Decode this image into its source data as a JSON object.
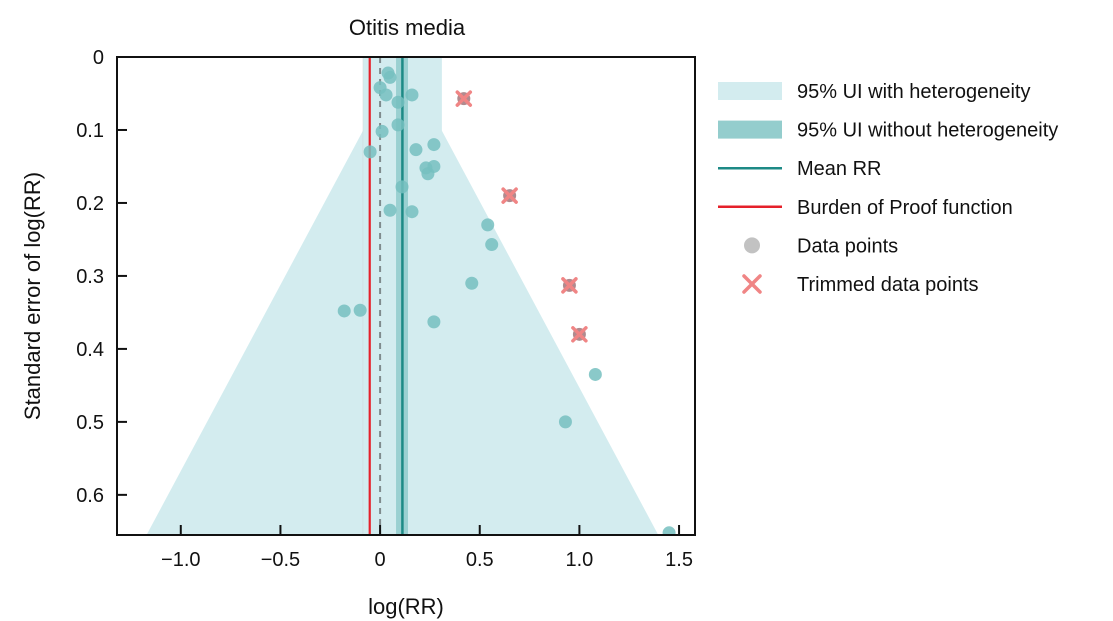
{
  "chart_data": {
    "type": "scatter",
    "title": "Otitis media",
    "xlabel": "log(RR)",
    "ylabel": "Standard error of log(RR)",
    "xlim": [
      -1.32,
      1.58
    ],
    "ylim": [
      0.655,
      0
    ],
    "y_inverted": true,
    "xticks": [
      -1.0,
      -0.5,
      0.0,
      0.5,
      1.0,
      1.5
    ],
    "xtick_labels": [
      "−1.0",
      "−0.5",
      "0",
      "0.5",
      "1.0",
      "1.5"
    ],
    "yticks": [
      0,
      0.1,
      0.2,
      0.3,
      0.4,
      0.5,
      0.6
    ],
    "ytick_labels": [
      "0",
      "0.1",
      "0.2",
      "0.3",
      "0.4",
      "0.5",
      "0.6"
    ],
    "grid": false,
    "legend_position": "right",
    "mean_rr": 0.112,
    "burden_of_proof": -0.052,
    "reference_line": 0,
    "ui_without_heterogeneity": [
      0.08,
      0.14
    ],
    "ui_with_heterogeneity": [
      -0.085,
      0.31
    ],
    "funnel_halfwidth_per_se": 1.96,
    "series": [
      {
        "name": "Data points",
        "points": [
          {
            "x": 0.04,
            "y": 0.022
          },
          {
            "x": 0.05,
            "y": 0.028
          },
          {
            "x": 0.0,
            "y": 0.042
          },
          {
            "x": 0.03,
            "y": 0.052
          },
          {
            "x": 0.16,
            "y": 0.052
          },
          {
            "x": 0.09,
            "y": 0.062
          },
          {
            "x": 0.09,
            "y": 0.093
          },
          {
            "x": 0.01,
            "y": 0.102
          },
          {
            "x": 0.27,
            "y": 0.12
          },
          {
            "x": 0.18,
            "y": 0.127
          },
          {
            "x": -0.05,
            "y": 0.13
          },
          {
            "x": 0.27,
            "y": 0.15
          },
          {
            "x": 0.23,
            "y": 0.152
          },
          {
            "x": 0.24,
            "y": 0.16
          },
          {
            "x": 0.11,
            "y": 0.178
          },
          {
            "x": 0.05,
            "y": 0.21
          },
          {
            "x": 0.16,
            "y": 0.212
          },
          {
            "x": 0.54,
            "y": 0.23
          },
          {
            "x": 0.56,
            "y": 0.257
          },
          {
            "x": 0.46,
            "y": 0.31
          },
          {
            "x": -0.18,
            "y": 0.348
          },
          {
            "x": -0.1,
            "y": 0.347
          },
          {
            "x": 0.27,
            "y": 0.363
          },
          {
            "x": 1.08,
            "y": 0.435
          },
          {
            "x": 0.93,
            "y": 0.5
          },
          {
            "x": 1.45,
            "y": 0.652
          }
        ]
      },
      {
        "name": "Trimmed data points",
        "points": [
          {
            "x": 0.42,
            "y": 0.057
          },
          {
            "x": 0.65,
            "y": 0.19
          },
          {
            "x": 0.95,
            "y": 0.313
          },
          {
            "x": 1.0,
            "y": 0.38
          }
        ]
      }
    ],
    "legend": [
      {
        "label": "95% UI with heterogeneity",
        "kind": "band-light",
        "color": "#d3ecef"
      },
      {
        "label": "95% UI without heterogeneity",
        "kind": "band-dark",
        "color": "#94cdcd"
      },
      {
        "label": "Mean RR",
        "kind": "line",
        "color": "#1d8a86"
      },
      {
        "label": "Burden of Proof function",
        "kind": "line",
        "color": "#e5202a"
      },
      {
        "label": "Data points",
        "kind": "dot",
        "color": "#c2c2c2"
      },
      {
        "label": "Trimmed data points",
        "kind": "cross",
        "color": "#f08585"
      }
    ],
    "colors": {
      "band_light": "#d3ecef",
      "band_dark": "#94cdcd",
      "mean_line": "#1d8a86",
      "bop_line": "#e5202a",
      "reference_line": "#7f8b8d",
      "gray_band": "#c9cccc",
      "data_point": "#76bfbf",
      "trimmed_fill": "#a97d82",
      "trimmed_cross": "#f08585",
      "axis": "#111111"
    }
  }
}
